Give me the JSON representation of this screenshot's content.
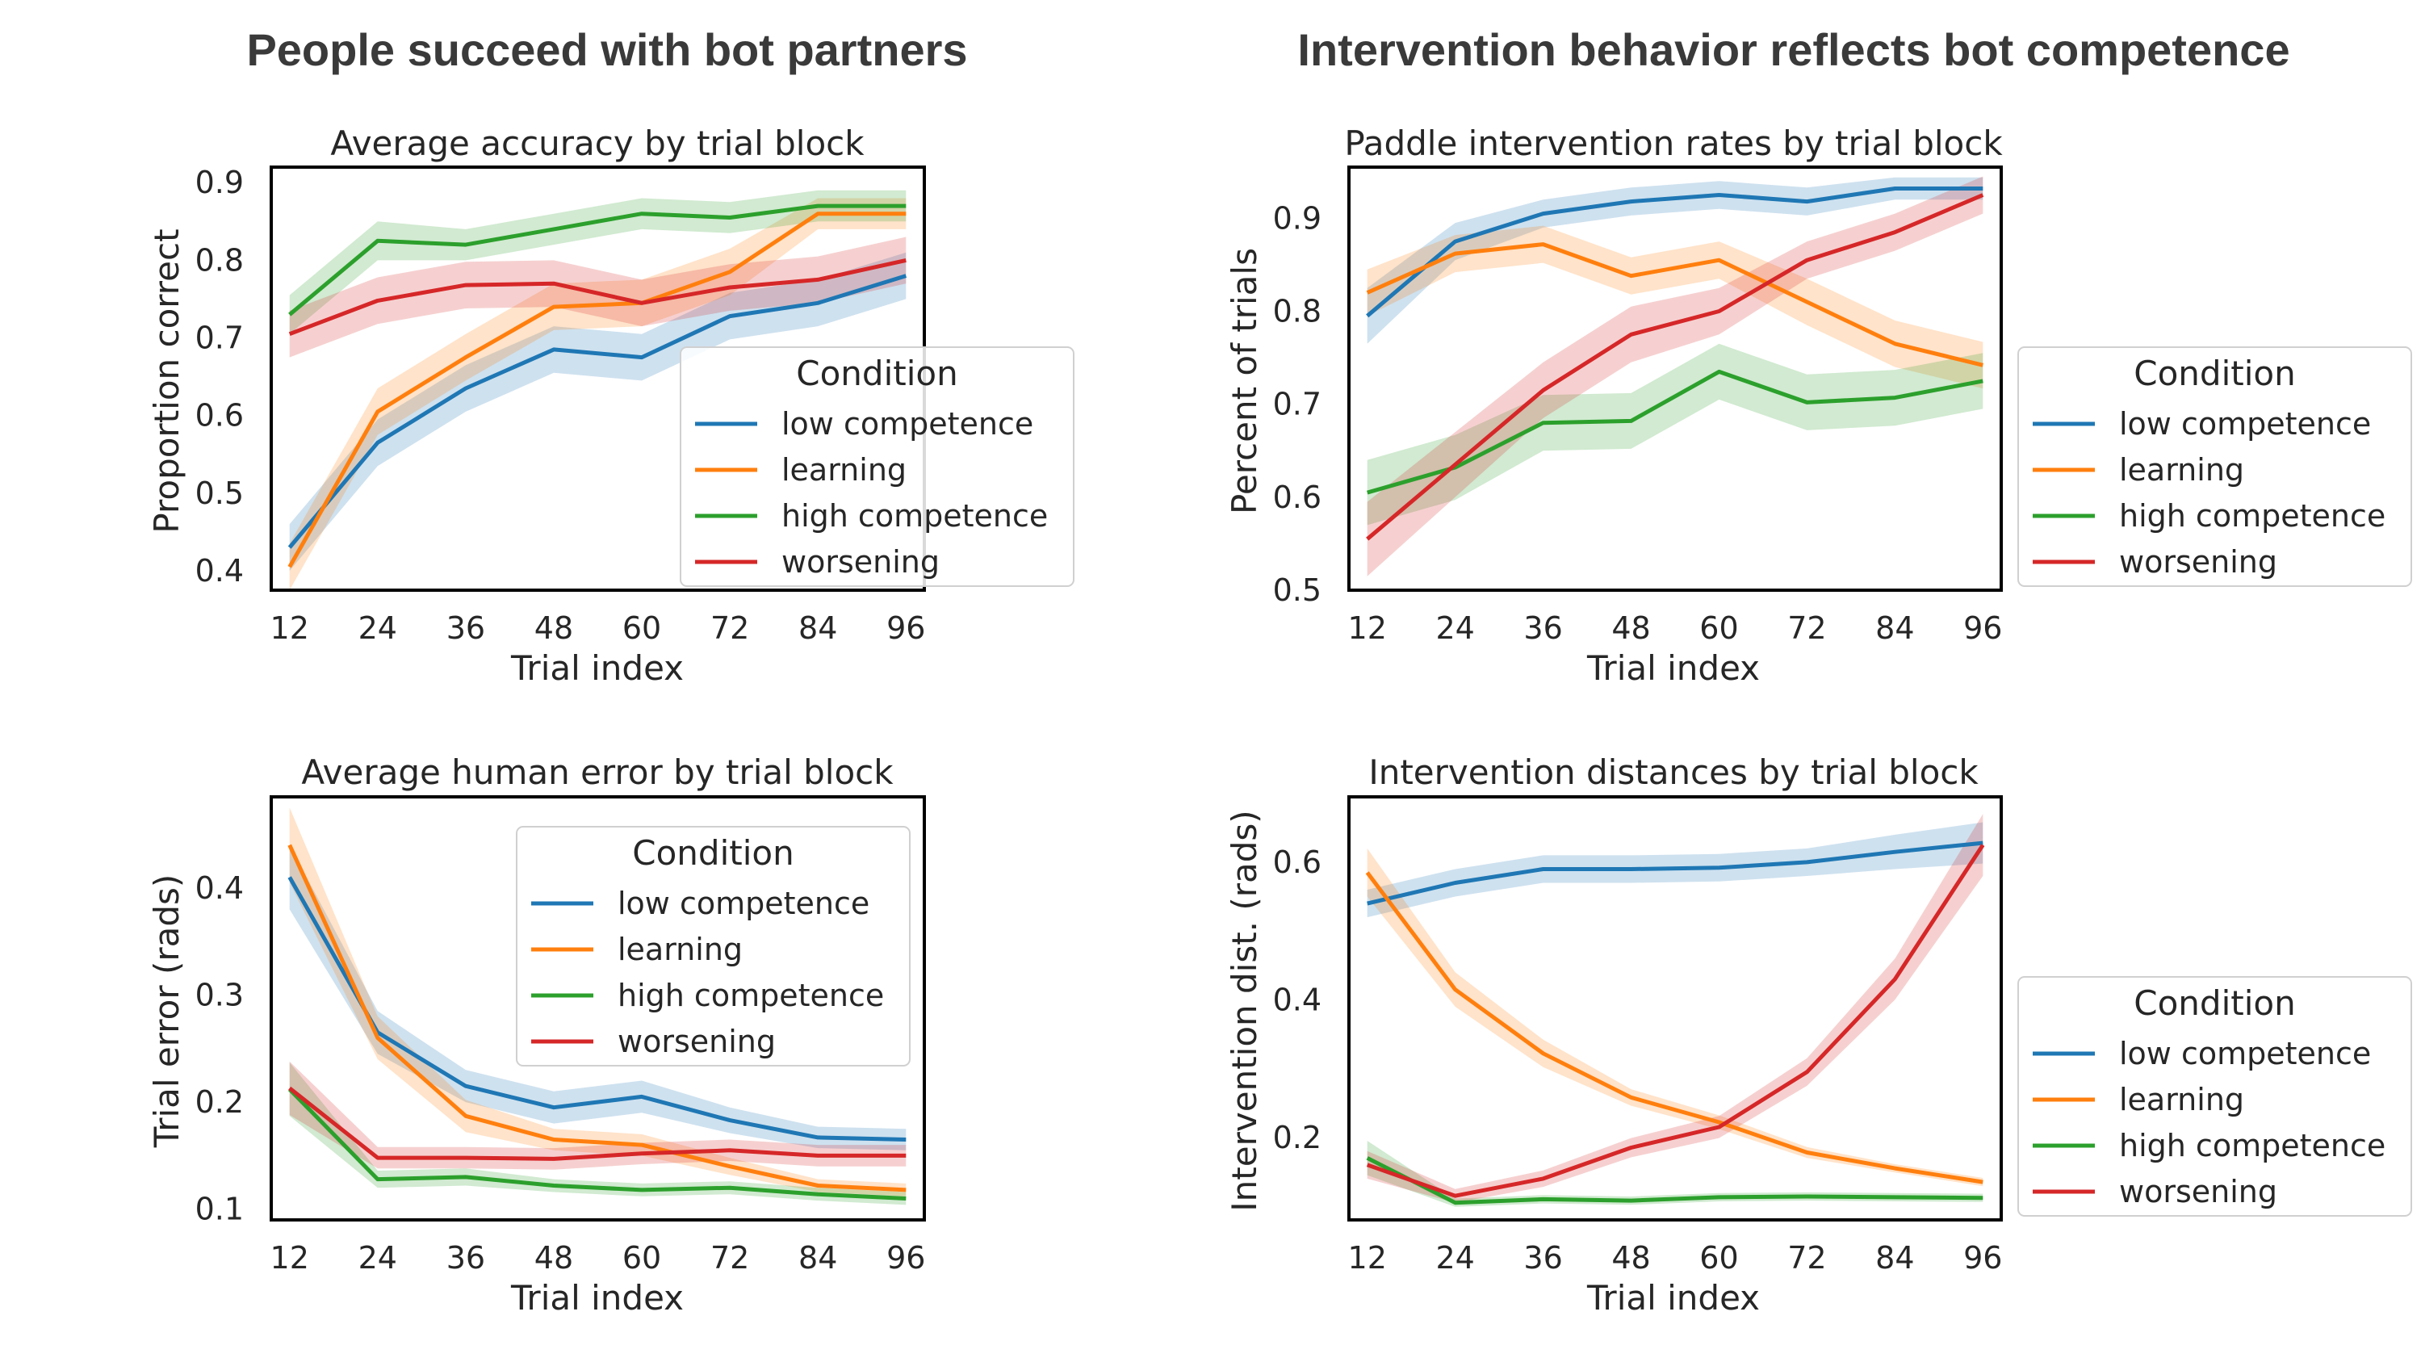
{
  "headings": {
    "left": "People succeed with bot partners",
    "right": "Intervention behavior reflects bot competence"
  },
  "colors": {
    "low competence": "#1f77b4",
    "learning": "#ff7f0e",
    "high competence": "#2ca02c",
    "worsening": "#d62728"
  },
  "chart_data": [
    {
      "type": "line",
      "title": "Average accuracy by trial block",
      "xlabel": "Trial index",
      "ylabel": "Proportion correct",
      "x": [
        12,
        24,
        36,
        48,
        60,
        72,
        84,
        96
      ],
      "xlim": [
        9.5,
        98.5
      ],
      "ylim": [
        0.375,
        0.92
      ],
      "yticks": [
        "0.4",
        "0.5",
        "0.6",
        "0.7",
        "0.8",
        "0.9"
      ],
      "grid": false,
      "legend": {
        "title": "Condition",
        "position": "center-right",
        "labels": [
          "low competence",
          "learning",
          "high competence",
          "worsening"
        ]
      },
      "series": [
        {
          "name": "low competence",
          "values": [
            0.43,
            0.565,
            0.635,
            0.685,
            0.675,
            0.728,
            0.745,
            0.78
          ],
          "ci": [
            0.03,
            0.03,
            0.03,
            0.03,
            0.03,
            0.03,
            0.03,
            0.03
          ]
        },
        {
          "name": "learning",
          "values": [
            0.405,
            0.605,
            0.675,
            0.74,
            0.745,
            0.785,
            0.86,
            0.86
          ],
          "ci": [
            0.03,
            0.03,
            0.03,
            0.03,
            0.03,
            0.03,
            0.02,
            0.02
          ]
        },
        {
          "name": "high competence",
          "values": [
            0.73,
            0.825,
            0.82,
            0.84,
            0.86,
            0.855,
            0.87,
            0.87
          ],
          "ci": [
            0.025,
            0.025,
            0.02,
            0.02,
            0.02,
            0.02,
            0.02,
            0.02
          ]
        },
        {
          "name": "worsening",
          "values": [
            0.705,
            0.748,
            0.768,
            0.77,
            0.745,
            0.765,
            0.775,
            0.8
          ],
          "ci": [
            0.03,
            0.03,
            0.03,
            0.03,
            0.03,
            0.03,
            0.03,
            0.03
          ]
        }
      ]
    },
    {
      "type": "line",
      "title": "Paddle intervention rates by trial block",
      "xlabel": "Trial index",
      "ylabel": "Percent of trials",
      "x": [
        12,
        24,
        36,
        48,
        60,
        72,
        84,
        96
      ],
      "xlim": [
        9.5,
        98.5
      ],
      "ylim": [
        0.5,
        0.955
      ],
      "yticks": [
        "0.5",
        "0.6",
        "0.7",
        "0.8",
        "0.9"
      ],
      "grid": false,
      "legend": {
        "title": "Condition",
        "position": "outside-right",
        "labels": [
          "low competence",
          "learning",
          "high competence",
          "worsening"
        ]
      },
      "series": [
        {
          "name": "low competence",
          "values": [
            0.795,
            0.875,
            0.905,
            0.918,
            0.925,
            0.918,
            0.932,
            0.932
          ],
          "ci": [
            0.03,
            0.02,
            0.015,
            0.015,
            0.015,
            0.015,
            0.012,
            0.012
          ]
        },
        {
          "name": "learning",
          "values": [
            0.82,
            0.862,
            0.872,
            0.838,
            0.855,
            0.81,
            0.765,
            0.742
          ],
          "ci": [
            0.025,
            0.02,
            0.02,
            0.02,
            0.02,
            0.025,
            0.025,
            0.025
          ]
        },
        {
          "name": "high competence",
          "values": [
            0.605,
            0.632,
            0.68,
            0.682,
            0.735,
            0.702,
            0.707,
            0.725
          ],
          "ci": [
            0.035,
            0.035,
            0.03,
            0.03,
            0.03,
            0.03,
            0.03,
            0.03
          ]
        },
        {
          "name": "worsening",
          "values": [
            0.555,
            0.635,
            0.715,
            0.775,
            0.8,
            0.855,
            0.885,
            0.925
          ],
          "ci": [
            0.04,
            0.035,
            0.03,
            0.03,
            0.025,
            0.02,
            0.02,
            0.02
          ]
        }
      ]
    },
    {
      "type": "line",
      "title": "Average human error by trial block",
      "xlabel": "Trial index",
      "ylabel": "Trial error (rads)",
      "x": [
        12,
        24,
        36,
        48,
        60,
        72,
        84,
        96
      ],
      "xlim": [
        9.5,
        98.5
      ],
      "ylim": [
        0.09,
        0.485
      ],
      "yticks": [
        "0.1",
        "0.2",
        "0.3",
        "0.4"
      ],
      "grid": false,
      "legend": {
        "title": "Condition",
        "position": "upper-right",
        "labels": [
          "low competence",
          "learning",
          "high competence",
          "worsening"
        ]
      },
      "series": [
        {
          "name": "low competence",
          "values": [
            0.41,
            0.265,
            0.215,
            0.195,
            0.205,
            0.183,
            0.167,
            0.165
          ],
          "ci": [
            0.03,
            0.02,
            0.015,
            0.015,
            0.015,
            0.012,
            0.01,
            0.01
          ]
        },
        {
          "name": "learning",
          "values": [
            0.44,
            0.26,
            0.187,
            0.165,
            0.16,
            0.14,
            0.122,
            0.118
          ],
          "ci": [
            0.035,
            0.02,
            0.015,
            0.01,
            0.01,
            0.008,
            0.006,
            0.006
          ]
        },
        {
          "name": "high competence",
          "values": [
            0.212,
            0.128,
            0.13,
            0.122,
            0.118,
            0.12,
            0.114,
            0.11
          ],
          "ci": [
            0.025,
            0.008,
            0.008,
            0.006,
            0.006,
            0.006,
            0.006,
            0.006
          ]
        },
        {
          "name": "worsening",
          "values": [
            0.213,
            0.148,
            0.148,
            0.147,
            0.152,
            0.155,
            0.15,
            0.15
          ],
          "ci": [
            0.025,
            0.01,
            0.01,
            0.01,
            0.01,
            0.01,
            0.01,
            0.01
          ]
        }
      ]
    },
    {
      "type": "line",
      "title": "Intervention distances by trial block",
      "xlabel": "Trial index",
      "ylabel": "Intervention dist. (rads)",
      "x": [
        12,
        24,
        36,
        48,
        60,
        72,
        84,
        96
      ],
      "xlim": [
        9.5,
        98.5
      ],
      "ylim": [
        0.08,
        0.695
      ],
      "yticks": [
        "0.2",
        "0.4",
        "0.6"
      ],
      "grid": false,
      "legend": {
        "title": "Condition",
        "position": "outside-right",
        "labels": [
          "low competence",
          "learning",
          "high competence",
          "worsening"
        ]
      },
      "series": [
        {
          "name": "low competence",
          "values": [
            0.54,
            0.57,
            0.59,
            0.59,
            0.592,
            0.6,
            0.615,
            0.628
          ],
          "ci": [
            0.02,
            0.02,
            0.02,
            0.02,
            0.02,
            0.02,
            0.025,
            0.03
          ]
        },
        {
          "name": "learning",
          "values": [
            0.585,
            0.415,
            0.322,
            0.258,
            0.222,
            0.178,
            0.155,
            0.135
          ],
          "ci": [
            0.035,
            0.025,
            0.02,
            0.012,
            0.01,
            0.008,
            0.006,
            0.006
          ]
        },
        {
          "name": "high competence",
          "values": [
            0.17,
            0.105,
            0.11,
            0.108,
            0.113,
            0.114,
            0.113,
            0.112
          ],
          "ci": [
            0.025,
            0.006,
            0.006,
            0.006,
            0.006,
            0.006,
            0.006,
            0.006
          ]
        },
        {
          "name": "worsening",
          "values": [
            0.16,
            0.115,
            0.14,
            0.185,
            0.215,
            0.295,
            0.43,
            0.625
          ],
          "ci": [
            0.02,
            0.01,
            0.012,
            0.014,
            0.016,
            0.02,
            0.03,
            0.045
          ]
        }
      ]
    }
  ]
}
